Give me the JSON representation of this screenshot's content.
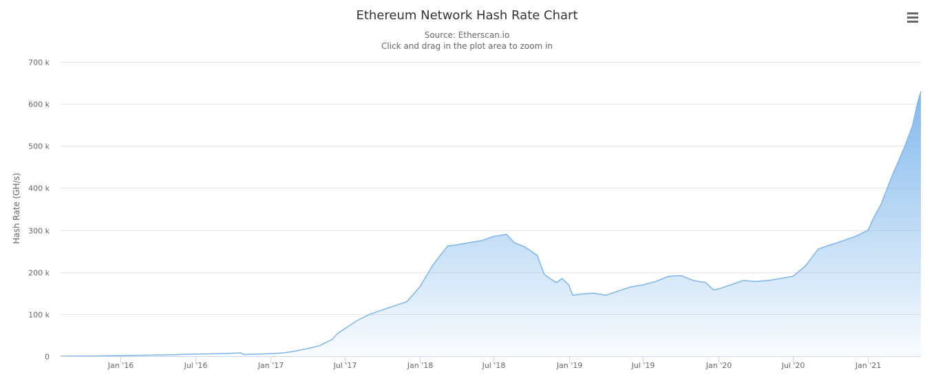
{
  "header": {
    "title": "Ethereum Network Hash Rate Chart",
    "subtitle_source": "Source: Etherscan.io",
    "subtitle_hint": "Click and drag in the plot area to zoom in",
    "menu_icon": "hamburger-menu-icon"
  },
  "colors": {
    "series_line": "#7cb5ec",
    "grid": "#e6e6e6",
    "axis_text": "#666666",
    "title_text": "#333333"
  },
  "chart_data": {
    "type": "area",
    "title": "Ethereum Network Hash Rate Chart",
    "subtitle": "Source: Etherscan.io",
    "xlabel": "",
    "ylabel": "Hash Rate (GH/s)",
    "ylim": [
      0,
      700000
    ],
    "yticks": [
      {
        "value": 0,
        "label": "0"
      },
      {
        "value": 100000,
        "label": "100 k"
      },
      {
        "value": 200000,
        "label": "200 k"
      },
      {
        "value": 300000,
        "label": "300 k"
      },
      {
        "value": 400000,
        "label": "400 k"
      },
      {
        "value": 500000,
        "label": "500 k"
      },
      {
        "value": 600000,
        "label": "600 k"
      },
      {
        "value": 700000,
        "label": "700 k"
      }
    ],
    "xlim": [
      "2015-08-07",
      "2021-05-10"
    ],
    "xticks": [
      {
        "date": "2016-01-01",
        "label": "Jan '16"
      },
      {
        "date": "2016-07-01",
        "label": "Jul '16"
      },
      {
        "date": "2017-01-01",
        "label": "Jan '17"
      },
      {
        "date": "2017-07-01",
        "label": "Jul '17"
      },
      {
        "date": "2018-01-01",
        "label": "Jan '18"
      },
      {
        "date": "2018-07-01",
        "label": "Jul '18"
      },
      {
        "date": "2019-01-01",
        "label": "Jan '19"
      },
      {
        "date": "2019-07-01",
        "label": "Jul '19"
      },
      {
        "date": "2020-01-01",
        "label": "Jan '20"
      },
      {
        "date": "2020-07-01",
        "label": "Jul '20"
      },
      {
        "date": "2021-01-01",
        "label": "Jan '21"
      }
    ],
    "legend": "none",
    "grid": true,
    "series": [
      {
        "name": "Hash Rate (GH/s)",
        "points": [
          [
            "2015-08-07",
            0
          ],
          [
            "2015-10-01",
            400
          ],
          [
            "2016-01-01",
            1500
          ],
          [
            "2016-03-01",
            2500
          ],
          [
            "2016-05-01",
            3500
          ],
          [
            "2016-07-01",
            5000
          ],
          [
            "2016-09-01",
            6000
          ],
          [
            "2016-10-20",
            8000
          ],
          [
            "2016-10-28",
            4000
          ],
          [
            "2016-12-01",
            5000
          ],
          [
            "2017-01-01",
            6000
          ],
          [
            "2017-02-01",
            8000
          ],
          [
            "2017-03-01",
            12000
          ],
          [
            "2017-04-01",
            18000
          ],
          [
            "2017-05-01",
            25000
          ],
          [
            "2017-06-01",
            40000
          ],
          [
            "2017-06-15",
            55000
          ],
          [
            "2017-07-01",
            65000
          ],
          [
            "2017-08-01",
            85000
          ],
          [
            "2017-09-01",
            100000
          ],
          [
            "2017-10-01",
            110000
          ],
          [
            "2017-11-01",
            120000
          ],
          [
            "2017-12-01",
            130000
          ],
          [
            "2018-01-01",
            165000
          ],
          [
            "2018-02-01",
            215000
          ],
          [
            "2018-02-20",
            240000
          ],
          [
            "2018-03-10",
            262000
          ],
          [
            "2018-04-01",
            265000
          ],
          [
            "2018-05-01",
            270000
          ],
          [
            "2018-06-01",
            275000
          ],
          [
            "2018-07-01",
            285000
          ],
          [
            "2018-08-01",
            290000
          ],
          [
            "2018-08-20",
            270000
          ],
          [
            "2018-09-15",
            260000
          ],
          [
            "2018-10-15",
            240000
          ],
          [
            "2018-11-01",
            195000
          ],
          [
            "2018-11-15",
            185000
          ],
          [
            "2018-12-01",
            175000
          ],
          [
            "2018-12-15",
            185000
          ],
          [
            "2018-12-31",
            170000
          ],
          [
            "2019-01-10",
            145000
          ],
          [
            "2019-02-01",
            148000
          ],
          [
            "2019-03-01",
            150000
          ],
          [
            "2019-04-01",
            145000
          ],
          [
            "2019-05-01",
            155000
          ],
          [
            "2019-06-01",
            165000
          ],
          [
            "2019-07-01",
            170000
          ],
          [
            "2019-08-01",
            178000
          ],
          [
            "2019-09-01",
            190000
          ],
          [
            "2019-10-01",
            192000
          ],
          [
            "2019-11-01",
            180000
          ],
          [
            "2019-12-01",
            175000
          ],
          [
            "2019-12-20",
            158000
          ],
          [
            "2020-01-01",
            160000
          ],
          [
            "2020-02-01",
            170000
          ],
          [
            "2020-03-01",
            180000
          ],
          [
            "2020-04-01",
            178000
          ],
          [
            "2020-05-01",
            180000
          ],
          [
            "2020-06-01",
            185000
          ],
          [
            "2020-07-01",
            190000
          ],
          [
            "2020-08-01",
            215000
          ],
          [
            "2020-09-01",
            255000
          ],
          [
            "2020-10-01",
            265000
          ],
          [
            "2020-11-01",
            275000
          ],
          [
            "2020-12-01",
            285000
          ],
          [
            "2021-01-01",
            300000
          ],
          [
            "2021-01-15",
            330000
          ],
          [
            "2021-02-01",
            360000
          ],
          [
            "2021-03-01",
            430000
          ],
          [
            "2021-04-01",
            500000
          ],
          [
            "2021-04-20",
            550000
          ],
          [
            "2021-05-01",
            600000
          ],
          [
            "2021-05-10",
            630000
          ]
        ]
      }
    ]
  }
}
